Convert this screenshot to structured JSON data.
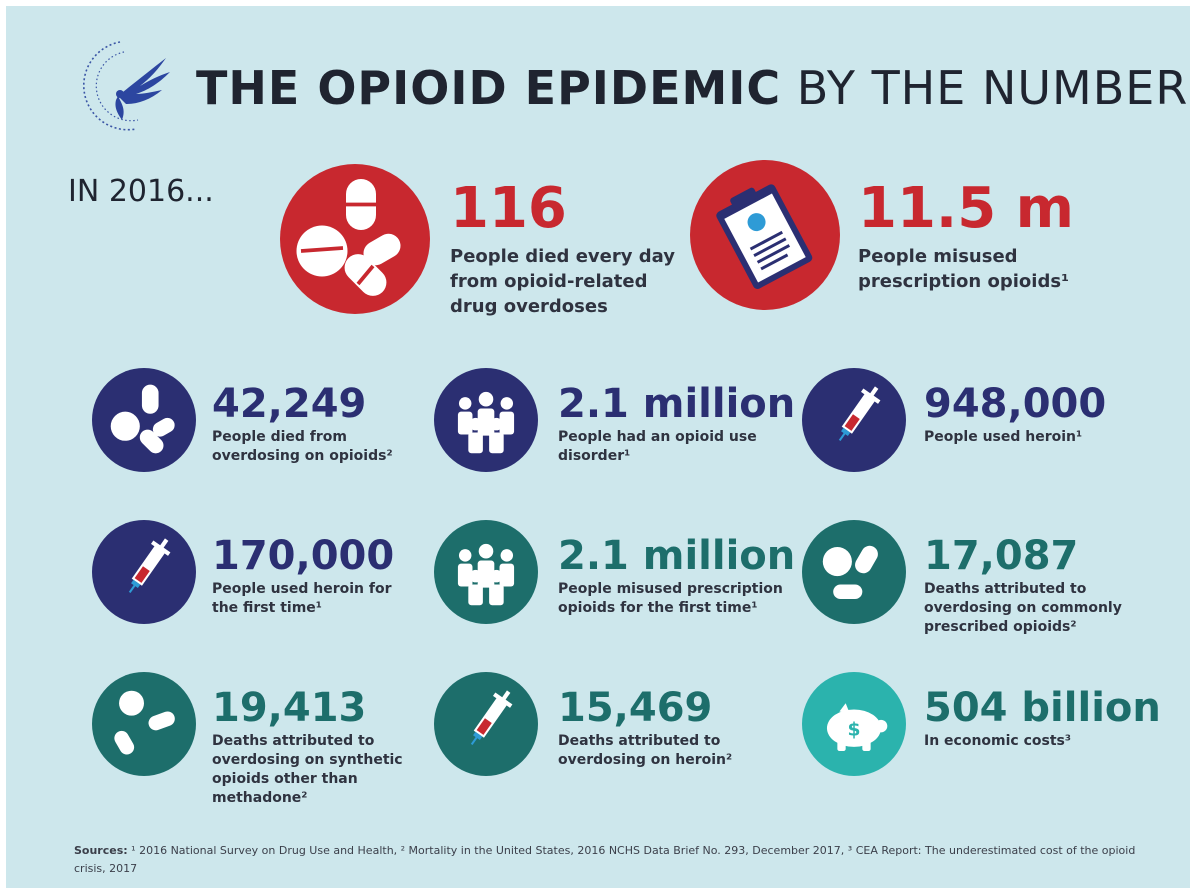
{
  "title": {
    "bold": "THE OPIOID EPIDEMIC",
    "light": " BY THE NUMBERS"
  },
  "logo_icon": "hhs-eagle-logo",
  "intro": "IN 2016...",
  "colors": {
    "background": "#cde7ec",
    "red": "#c8282f",
    "navy": "#2b2f72",
    "teal": "#1d6e6b"
  },
  "headline_stats": [
    {
      "value": "116",
      "desc_lines": [
        "People died every day",
        "from opioid-related",
        "drug overdoses"
      ],
      "icon": "pills-icon"
    },
    {
      "value": "11.5 m",
      "desc_lines": [
        "People misused",
        "prescription opioids¹"
      ],
      "icon": "prescription-clipboard-icon"
    }
  ],
  "stats": [
    {
      "value": "42,249",
      "desc_lines": [
        "People died from",
        "overdosing on opioids²"
      ],
      "icon": "pills-icon"
    },
    {
      "value": "2.1 million",
      "desc_lines": [
        "People had an opioid use",
        "disorder¹"
      ],
      "icon": "people-group-icon"
    },
    {
      "value": "948,000",
      "desc_lines": [
        "People used heroin¹"
      ],
      "icon": "syringe-icon"
    },
    {
      "value": "170,000",
      "desc_lines": [
        "People used heroin for",
        "the first time¹"
      ],
      "icon": "syringe-icon"
    },
    {
      "value": "2.1 million",
      "desc_lines": [
        "People misused prescription",
        "opioids for the first time¹"
      ],
      "icon": "people-group-icon"
    },
    {
      "value": "17,087",
      "desc_lines": [
        "Deaths attributed to",
        "overdosing on commonly",
        "prescribed opioids²"
      ],
      "icon": "pills-icon"
    },
    {
      "value": "19,413",
      "desc_lines": [
        "Deaths attributed to",
        "overdosing on synthetic",
        "opioids other than",
        "methadone²"
      ],
      "icon": "pills-icon"
    },
    {
      "value": "15,469",
      "desc_lines": [
        "Deaths attributed to",
        "overdosing on heroin²"
      ],
      "icon": "syringe-icon"
    },
    {
      "value": "504 billion",
      "desc_lines": [
        "In economic costs³"
      ],
      "icon": "piggy-bank-icon"
    }
  ],
  "sources": {
    "label": "Sources:",
    "text": " ¹ 2016 National Survey on Drug Use and Health, ² Mortality in the United States, 2016 NCHS Data Brief No. 293, December 2017, ³ CEA Report: The underestimated cost of the opioid crisis, 2017"
  }
}
